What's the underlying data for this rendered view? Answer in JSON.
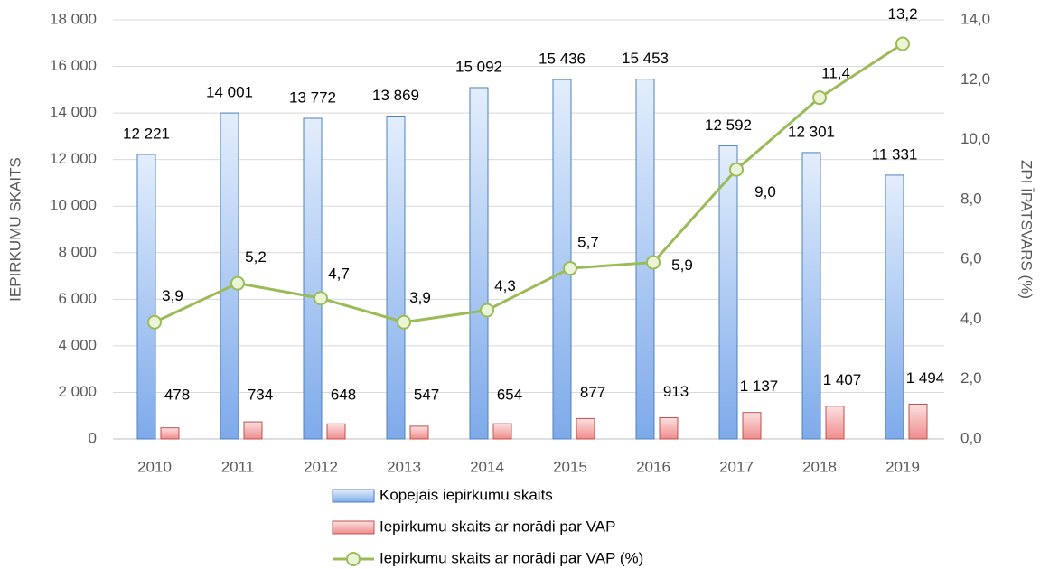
{
  "chart_data": {
    "type": "bar",
    "categories": [
      "2010",
      "2011",
      "2012",
      "2013",
      "2014",
      "2015",
      "2016",
      "2017",
      "2018",
      "2019"
    ],
    "y_label": "IEPIRKUMU SKAITS",
    "y2_label": "ZPI ĪPATSVARS (%)",
    "ylim": [
      0,
      18000
    ],
    "yticks": [
      0,
      {
        "value": 2000,
        "label": "2 000"
      },
      {
        "value": 4000,
        "label": "4 000"
      },
      {
        "value": 6000,
        "label": "6 000"
      },
      {
        "value": 8000,
        "label": "8 000"
      },
      {
        "value": 10000,
        "label": "10 000"
      },
      {
        "value": 12000,
        "label": "12 000"
      },
      {
        "value": 14000,
        "label": "14 000"
      },
      {
        "value": 16000,
        "label": "16 000"
      },
      {
        "value": 18000,
        "label": "18 000"
      }
    ],
    "y2lim": [
      0,
      14
    ],
    "y2ticks": [
      {
        "value": 0,
        "label": "0,0"
      },
      {
        "value": 2,
        "label": "2,0"
      },
      {
        "value": 4,
        "label": "4,0"
      },
      {
        "value": 6,
        "label": "6,0"
      },
      {
        "value": 8,
        "label": "8,0"
      },
      {
        "value": 10,
        "label": "10,0"
      },
      {
        "value": 12,
        "label": "12,0"
      },
      {
        "value": 14,
        "label": "14,0"
      }
    ],
    "grid": true,
    "legend": "bottom",
    "series": [
      {
        "name": "Kopējais iepirkumu skaits",
        "type": "bar",
        "color": "#4f81bd",
        "values": [
          12221,
          14001,
          13772,
          13869,
          15092,
          15436,
          15453,
          12592,
          12301,
          11331
        ],
        "value_labels": [
          "12 221",
          "14 001",
          "13 772",
          "13 869",
          "15 092",
          "15 436",
          "15 453",
          "12 592",
          "12 301",
          "11 331"
        ]
      },
      {
        "name": "Iepirkumu skaits ar norādi par VAP",
        "type": "bar",
        "color": "#c0504d",
        "values": [
          478,
          734,
          648,
          547,
          654,
          877,
          913,
          1137,
          1407,
          1494
        ],
        "value_labels": [
          "478",
          "734",
          "648",
          "547",
          "654",
          "877",
          "913",
          "1 137",
          "1 407",
          "1 494"
        ]
      },
      {
        "name": "Iepirkumu skaits ar norādi par VAP (%)",
        "type": "line",
        "axis": "y2",
        "color": "#9bbb59",
        "values": [
          3.9,
          5.2,
          4.7,
          3.9,
          4.3,
          5.7,
          5.9,
          9.0,
          11.4,
          13.2
        ],
        "value_labels": [
          "3,9",
          "5,2",
          "4,7",
          "3,9",
          "4,3",
          "5,7",
          "5,9",
          "9,0",
          "11,4",
          "13,2"
        ]
      }
    ]
  }
}
